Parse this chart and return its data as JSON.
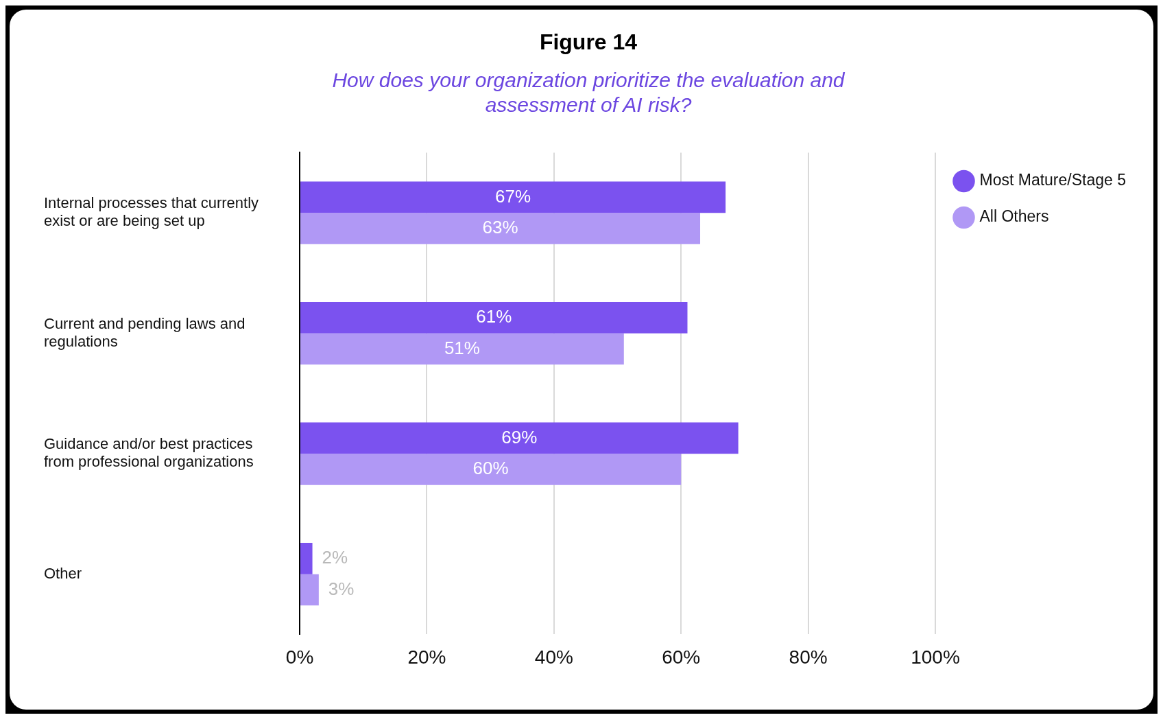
{
  "chart_data": {
    "type": "bar",
    "orientation": "horizontal",
    "title": "Figure 14",
    "subtitle": "How does your organization prioritize the evaluation and assessment of AI risk?",
    "categories": [
      "Internal processes that currently exist or are being set up",
      "Current and pending laws and regulations",
      "Guidance and/or best practices from professional organizations",
      "Other"
    ],
    "series": [
      {
        "name": "Most Mature/Stage 5",
        "color": "#7b52ef",
        "values": [
          67,
          61,
          69,
          2
        ],
        "value_labels": [
          "67%",
          "61%",
          "69%",
          "2%"
        ]
      },
      {
        "name": "All Others",
        "color": "#b098f5",
        "values": [
          63,
          51,
          60,
          3
        ],
        "value_labels": [
          "63%",
          "51%",
          "60%",
          "3%"
        ]
      }
    ],
    "xlim": [
      0,
      100
    ],
    "xticks": [
      {
        "value": 0,
        "label": "0%"
      },
      {
        "value": 20,
        "label": "20%"
      },
      {
        "value": 40,
        "label": "40%"
      },
      {
        "value": 60,
        "label": "60%"
      },
      {
        "value": 80,
        "label": "80%"
      },
      {
        "value": 100,
        "label": "100%"
      }
    ],
    "grid": "x",
    "legend": "top right"
  }
}
